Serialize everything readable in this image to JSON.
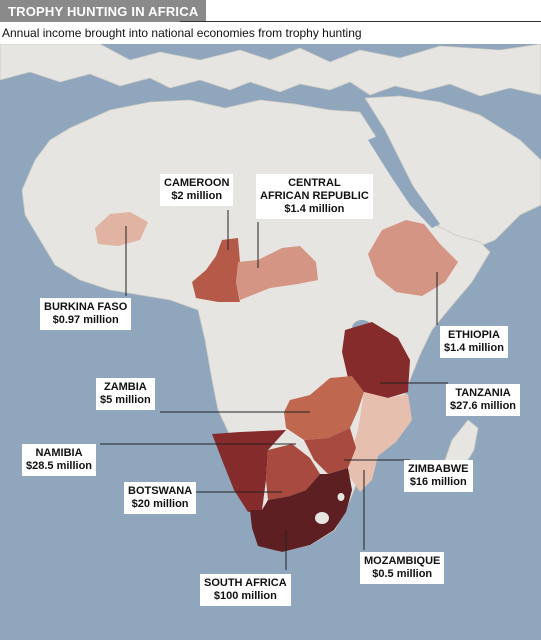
{
  "header": {
    "title": "TROPHY HUNTING IN AFRICA",
    "subtitle": "Annual income brought into national economies from trophy hunting"
  },
  "colors": {
    "ocean": "#8fa6bd",
    "land": "#e6e5e1",
    "title_bg": "#8a8a8a"
  },
  "countries": [
    {
      "id": "cameroon",
      "name": "CAMEROON",
      "value": "$2 million",
      "amount_musd": 2,
      "color": "#b55a48"
    },
    {
      "id": "car",
      "name": "CENTRAL AFRICAN REPUBLIC",
      "name_line1": "CENTRAL",
      "name_line2": "AFRICAN REPUBLIC",
      "value": "$1.4 million",
      "amount_musd": 1.4,
      "color": "#d49585"
    },
    {
      "id": "burkina",
      "name": "BURKINA FASO",
      "value": "$0.97 million",
      "amount_musd": 0.97,
      "color": "#e0b3a2"
    },
    {
      "id": "ethiopia",
      "name": "ETHIOPIA",
      "value": "$1.4 million",
      "amount_musd": 1.4,
      "color": "#d49585"
    },
    {
      "id": "tanzania",
      "name": "TANZANIA",
      "value": "$27.6 million",
      "amount_musd": 27.6,
      "color": "#862b2b"
    },
    {
      "id": "zambia",
      "name": "ZAMBIA",
      "value": "$5 million",
      "amount_musd": 5,
      "color": "#c0684f"
    },
    {
      "id": "namibia",
      "name": "NAMIBIA",
      "value": "$28.5 million",
      "amount_musd": 28.5,
      "color": "#862b2b"
    },
    {
      "id": "zimbabwe",
      "name": "ZIMBABWE",
      "value": "$16 million",
      "amount_musd": 16,
      "color": "#a84a3f"
    },
    {
      "id": "botswana",
      "name": "BOTSWANA",
      "value": "$20 million",
      "amount_musd": 20,
      "color": "#a84a3f"
    },
    {
      "id": "mozambique",
      "name": "MOZAMBIQUE",
      "value": "$0.5 million",
      "amount_musd": 0.5,
      "color": "#e6bfaf"
    },
    {
      "id": "south_africa",
      "name": "SOUTH AFRICA",
      "value": "$100 million",
      "amount_musd": 100,
      "color": "#5e1f22"
    }
  ]
}
